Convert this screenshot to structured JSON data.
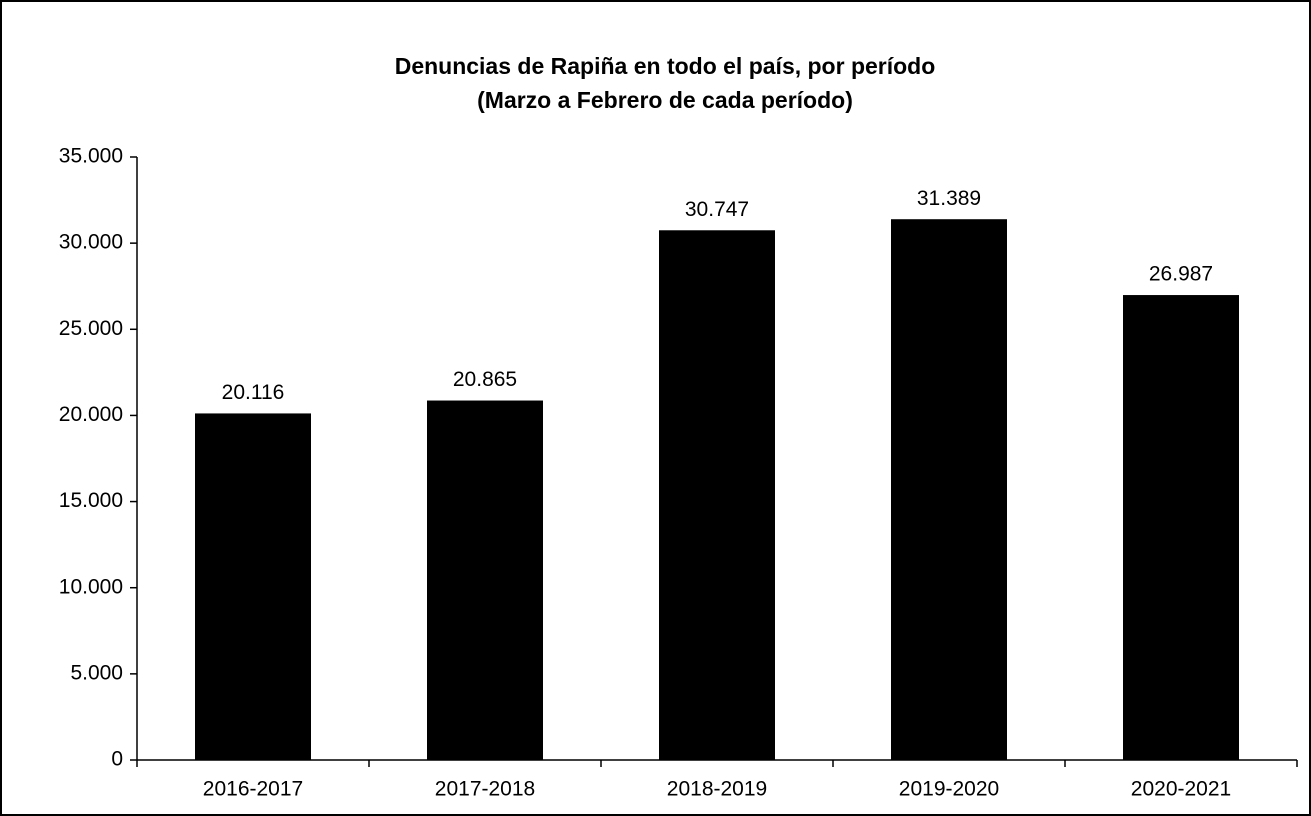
{
  "chart_data": {
    "type": "bar",
    "title": "Denuncias de Rapiña en todo el país, por período",
    "subtitle": "(Marzo a Febrero de cada período)",
    "categories": [
      "2016-2017",
      "2017-2018",
      "2018-2019",
      "2019-2020",
      "2020-2021"
    ],
    "values": [
      20116,
      20865,
      30747,
      31389,
      26987
    ],
    "value_labels": [
      "20.116",
      "20.865",
      "30.747",
      "31.389",
      "26.987"
    ],
    "color": "#000000",
    "ylim": [
      0,
      35000
    ],
    "yticks": [
      0,
      {
        "value": 5000,
        "label": "5.000"
      },
      {
        "value": 10000,
        "label": "10.000"
      },
      {
        "value": 15000,
        "label": "15.000"
      },
      {
        "value": 20000,
        "label": "20.000"
      },
      {
        "value": 25000,
        "label": "25.000"
      },
      {
        "value": 30000,
        "label": "30.000"
      },
      {
        "value": 35000,
        "label": "35.000"
      }
    ],
    "grid": false
  }
}
